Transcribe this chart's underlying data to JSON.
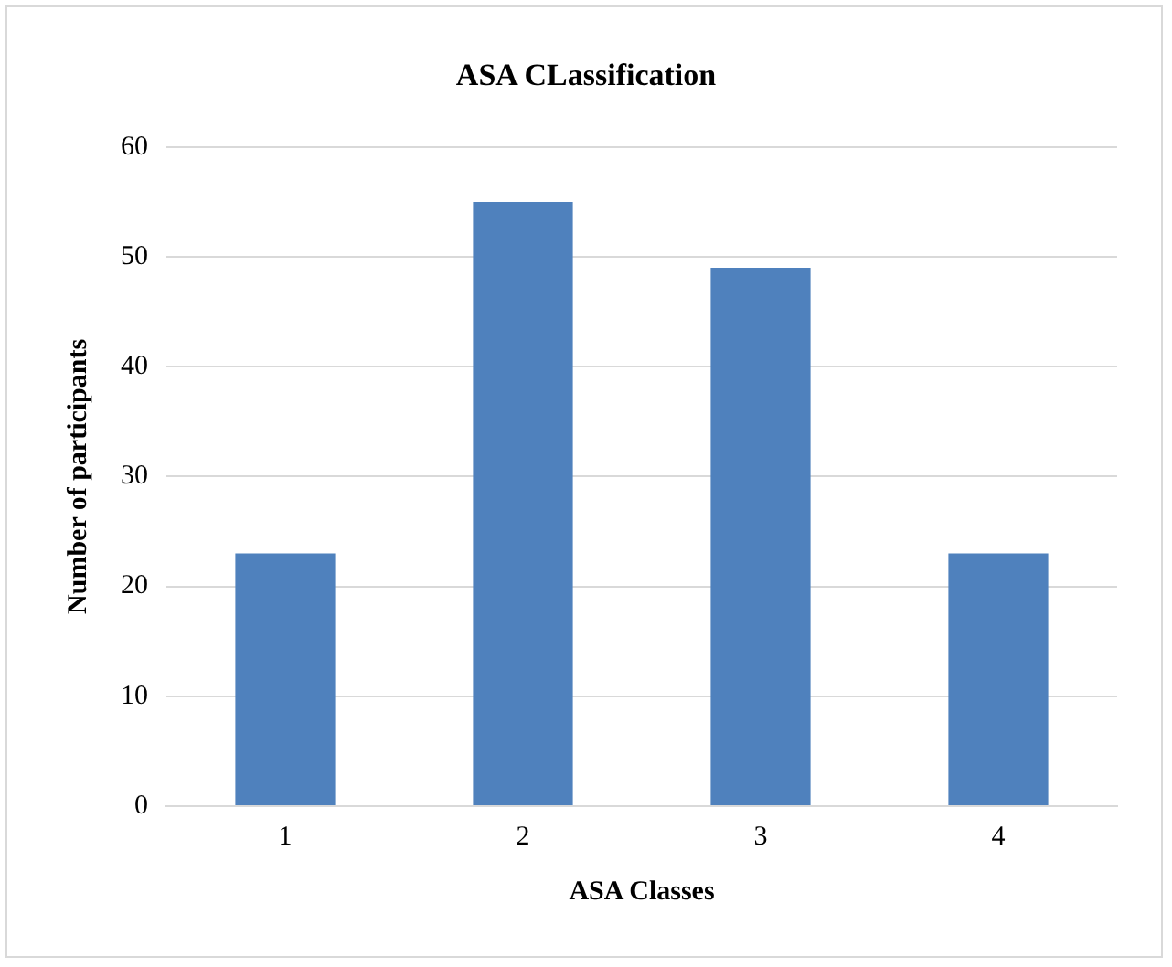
{
  "chart_data": {
    "type": "bar",
    "title": "ASA CLassification",
    "xlabel": "ASA Classes",
    "ylabel": "Number of participants",
    "categories": [
      "1",
      "2",
      "3",
      "4"
    ],
    "values": [
      23,
      55,
      49,
      23
    ],
    "color": "#4f81bd",
    "ylim": [
      0,
      60
    ],
    "yticks": [
      0,
      10,
      20,
      30,
      40,
      50,
      60
    ],
    "grid": "y",
    "legend": false
  }
}
